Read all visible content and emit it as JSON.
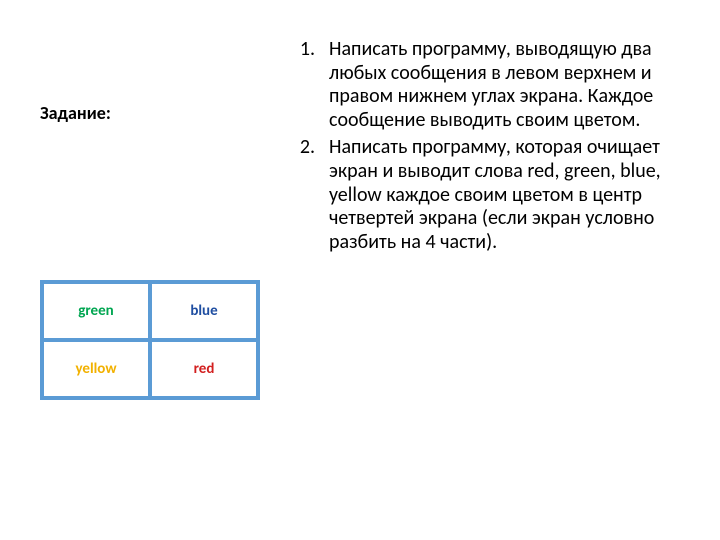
{
  "heading": "Задание:",
  "grid": {
    "border_color": "#5b9bd5",
    "cells": [
      {
        "label": "green",
        "color": "#00a651"
      },
      {
        "label": "blue",
        "color": "#1f4ea1"
      },
      {
        "label": "yellow",
        "color": "#f2b100"
      },
      {
        "label": "red",
        "color": "#d21f1f"
      }
    ]
  },
  "list": {
    "items": [
      {
        "num": "1.",
        "text": "Написать программу, выводящую два любых сообщения в левом верхнем и правом нижнем углах экрана. Каждое сообщение выводить своим цветом."
      },
      {
        "num": "2.",
        "text": "Написать программу, которая очищает экран и выводит слова red, green, blue, yellow каждое своим цветом в центр четвертей экрана (если экран условно разбить на 4 части)."
      }
    ]
  },
  "text_color": "#000000",
  "background_color": "#ffffff",
  "body_fontsize": 20,
  "heading_fontsize": 18,
  "cell_fontsize": 15
}
